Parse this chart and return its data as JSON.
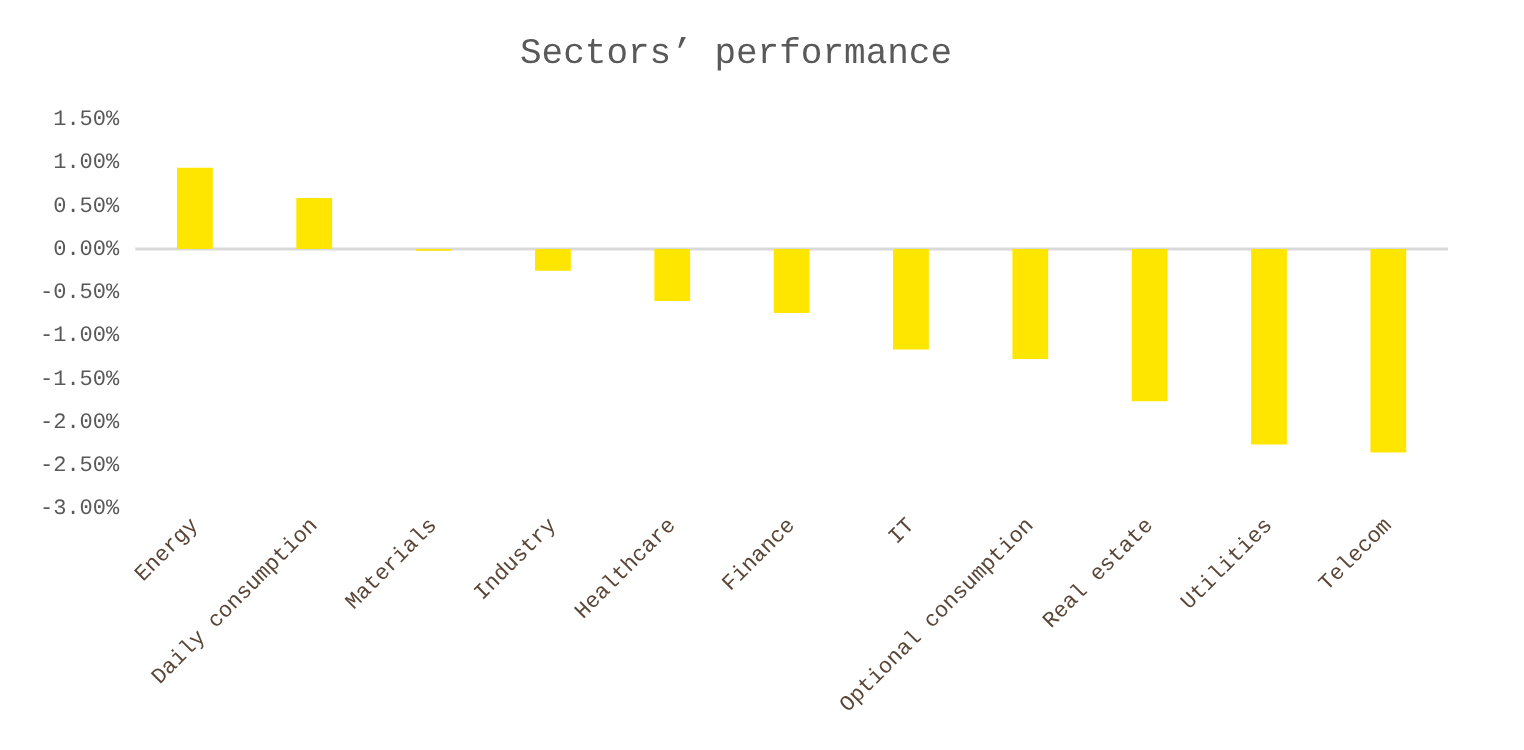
{
  "chart_data": {
    "type": "bar",
    "title": "Sectors’ performance",
    "categories": [
      "Energy",
      "Daily consumption",
      "Materials",
      "Industry",
      "Healthcare",
      "Finance",
      "IT",
      "Optional consumption",
      "Real estate",
      "Utilities",
      "Telecom"
    ],
    "values": [
      0.94,
      0.59,
      -0.02,
      -0.25,
      -0.6,
      -0.74,
      -1.16,
      -1.27,
      -1.76,
      -2.26,
      -2.35
    ],
    "color": "#ffe600",
    "ylim": [
      -3,
      1.5
    ],
    "yticks": [
      {
        "value": -3,
        "label": "-3.00%"
      },
      {
        "value": -2.5,
        "label": "-2.50%"
      },
      {
        "value": -2,
        "label": "-2.00%"
      },
      {
        "value": -1.5,
        "label": "-1.50%"
      },
      {
        "value": -1,
        "label": "-1.00%"
      },
      {
        "value": -0.5,
        "label": "-0.50%"
      },
      {
        "value": 0,
        "label": "0.00%"
      },
      {
        "value": 0.5,
        "label": "0.50%"
      },
      {
        "value": 1,
        "label": "1.00%"
      },
      {
        "value": 1.5,
        "label": "1.50%"
      }
    ],
    "ref_lines": [
      {
        "axis": "y",
        "value": 0,
        "color": "#d9d9d9"
      }
    ],
    "grid": false,
    "legend": false
  }
}
